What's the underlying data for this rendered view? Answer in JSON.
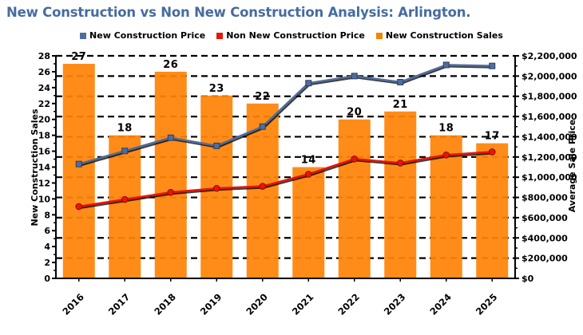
{
  "title": {
    "text": "New Construction vs Non New Construction Analysis: Arlington.",
    "color": "#466C9F"
  },
  "legend": {
    "items": [
      {
        "label": "New Construction Price",
        "color": "#4F6D9E"
      },
      {
        "label": "Non New Construction Price",
        "color": "#E8150A"
      },
      {
        "label": "New Construction Sales",
        "color": "#F28705"
      }
    ]
  },
  "chart_data": {
    "type": "combo-bar-line",
    "categories": [
      "2016",
      "2017",
      "2018",
      "2019",
      "2020",
      "2021",
      "2022",
      "2023",
      "2024",
      "2025"
    ],
    "bar_series": {
      "name": "New Construction Sales",
      "axis": "left",
      "color": "#FF8308",
      "values": [
        27,
        18,
        26,
        23,
        22,
        14,
        20,
        21,
        18,
        17
      ],
      "data_labels": [
        "27",
        "18",
        "26",
        "23",
        "22",
        "14",
        "20",
        "21",
        "18",
        "17"
      ]
    },
    "line_series": [
      {
        "name": "New Construction Price",
        "axis": "right",
        "color": "#4F6D9E",
        "marker": "square",
        "values": [
          1130000,
          1260000,
          1390000,
          1310000,
          1500000,
          1930000,
          2000000,
          1940000,
          2110000,
          2100000
        ]
      },
      {
        "name": "Non New Construction Price",
        "axis": "right",
        "color": "#E8150A",
        "marker": "circle",
        "values": [
          710000,
          780000,
          850000,
          890000,
          910000,
          1030000,
          1180000,
          1140000,
          1220000,
          1250000
        ]
      }
    ],
    "left_axis": {
      "title": "New Construction Sales",
      "min": 0,
      "max": 28,
      "step": 2,
      "tick_labels": [
        "0",
        "2",
        "4",
        "6",
        "8",
        "10",
        "12",
        "14",
        "16",
        "18",
        "20",
        "22",
        "24",
        "26",
        "28"
      ]
    },
    "right_axis": {
      "title": "Average Sale Price",
      "min": 0,
      "max": 2200000,
      "step": 200000,
      "tick_labels": [
        "$0",
        "$200,000",
        "$400,000",
        "$600,000",
        "$800,000",
        "$1,000,000",
        "$1,200,000",
        "$1,400,000",
        "$1,600,000",
        "$1,800,000",
        "$2,000,000",
        "$2,200,000"
      ]
    },
    "grid": {
      "orientation": "horizontal",
      "style": "dashed",
      "color": "#000000",
      "aligned_to": "right_axis"
    }
  }
}
